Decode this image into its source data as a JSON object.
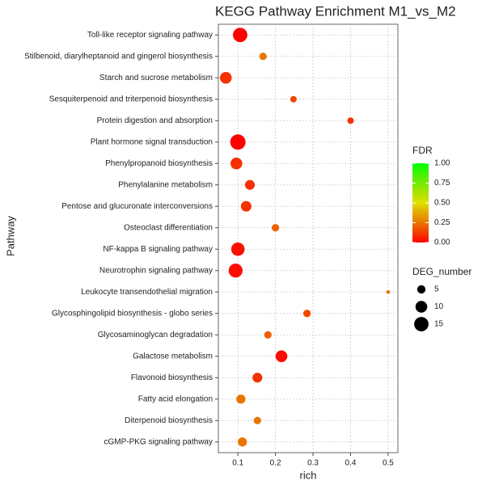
{
  "chart_data": {
    "type": "scatter",
    "title": "KEGG Pathway Enrichment  M1_vs_M2",
    "x_label": "rich",
    "y_label": "Pathway",
    "categories": [
      "Toll-like receptor signaling pathway",
      "Stilbenoid, diarylheptanoid and gingerol biosynthesis",
      "Starch and sucrose metabolism",
      "Sesquiterpenoid and triterpenoid biosynthesis",
      "Protein digestion and absorption",
      "Plant hormone signal transduction",
      "Phenylpropanoid biosynthesis",
      "Phenylalanine metabolism",
      "Pentose and glucuronate interconversions",
      "Osteoclast differentiation",
      "NF-kappa B signaling pathway",
      "Neurotrophin signaling pathway",
      "Leukocyte transendothelial migration",
      "Glycosphingolipid biosynthesis - globo series",
      "Glycosaminoglycan degradation",
      "Galactose metabolism",
      "Flavonoid biosynthesis",
      "Fatty acid elongation",
      "Diterpenoid biosynthesis",
      "cGMP-PKG signaling pathway"
    ],
    "x": [
      0.106,
      0.167,
      0.068,
      0.248,
      0.4,
      0.1,
      0.096,
      0.132,
      0.122,
      0.2,
      0.1,
      0.094,
      0.5,
      0.284,
      0.18,
      0.216,
      0.152,
      0.108,
      0.152,
      0.112
    ],
    "sizes": [
      15,
      4,
      10,
      3,
      3,
      17,
      10,
      7,
      8,
      4,
      13,
      14,
      1,
      4,
      4,
      10,
      7,
      6,
      4,
      6
    ],
    "fdr": [
      0.0,
      0.25,
      0.1,
      0.15,
      0.1,
      0.0,
      0.1,
      0.1,
      0.1,
      0.2,
      0.03,
      0.02,
      0.25,
      0.15,
      0.2,
      0.02,
      0.1,
      0.25,
      0.25,
      0.25
    ],
    "xlim": [
      0.048,
      0.526
    ],
    "xticks": [
      0.1,
      0.2,
      0.3,
      0.4,
      0.5
    ],
    "grid": true,
    "color_legend": {
      "title": "FDR",
      "low": "#ff0000",
      "high": "#00ff00",
      "lim": [
        0,
        1
      ],
      "ticks": [
        {
          "value": 1,
          "label": "1.00"
        },
        {
          "value": 0.75,
          "label": "0.75"
        },
        {
          "value": 0.5,
          "label": "0.50"
        },
        {
          "value": 0.25,
          "label": "0.25"
        },
        {
          "value": 0,
          "label": "0.00"
        }
      ]
    },
    "size_legend": {
      "title": "DEG_number",
      "values": [
        5,
        10,
        15
      ]
    }
  }
}
